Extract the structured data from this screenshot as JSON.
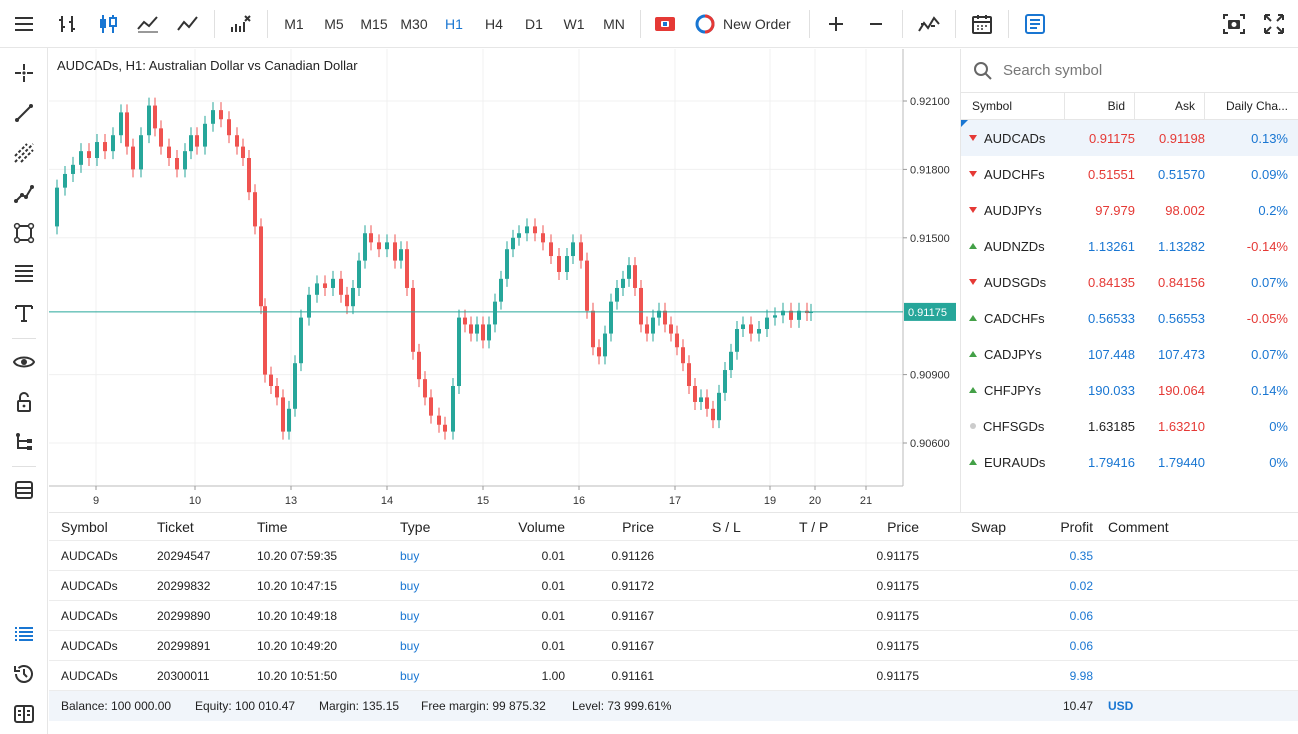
{
  "toolbar": {
    "timeframes": [
      "M1",
      "M5",
      "M15",
      "M30",
      "H1",
      "H4",
      "D1",
      "W1",
      "MN"
    ],
    "active_timeframe": "H1",
    "new_order_label": "New Order"
  },
  "chart": {
    "title": "AUDCADs, H1: Australian Dollar vs Canadian Dollar",
    "price_labels": [
      "0.92100",
      "0.91800",
      "0.91500",
      "0.90900",
      "0.90600"
    ],
    "current_price": "0.91175",
    "date_labels": [
      "9",
      "10",
      "13",
      "14",
      "15",
      "16",
      "17",
      "19",
      "20",
      "21"
    ],
    "colors": {
      "up": "#26a69a",
      "down": "#ef5350",
      "price_line": "#26a69a"
    }
  },
  "watchlist": {
    "search_placeholder": "Search symbol",
    "headers": {
      "symbol": "Symbol",
      "bid": "Bid",
      "ask": "Ask",
      "change": "Daily Cha..."
    },
    "rows": [
      {
        "symbol": "AUDCADs",
        "dir": "down",
        "bid": "0.91175",
        "ask": "0.91198",
        "change": "0.13%",
        "bid_color": "red",
        "ask_color": "red",
        "chg_color": "blue"
      },
      {
        "symbol": "AUDCHFs",
        "dir": "down",
        "bid": "0.51551",
        "ask": "0.51570",
        "change": "0.09%",
        "bid_color": "red",
        "ask_color": "blue",
        "chg_color": "blue"
      },
      {
        "symbol": "AUDJPYs",
        "dir": "down",
        "bid": "97.979",
        "ask": "98.002",
        "change": "0.2%",
        "bid_color": "red",
        "ask_color": "red",
        "chg_color": "blue"
      },
      {
        "symbol": "AUDNZDs",
        "dir": "up",
        "bid": "1.13261",
        "ask": "1.13282",
        "change": "-0.14%",
        "bid_color": "blue",
        "ask_color": "blue",
        "chg_color": "red"
      },
      {
        "symbol": "AUDSGDs",
        "dir": "down",
        "bid": "0.84135",
        "ask": "0.84156",
        "change": "0.07%",
        "bid_color": "red",
        "ask_color": "red",
        "chg_color": "blue"
      },
      {
        "symbol": "CADCHFs",
        "dir": "up",
        "bid": "0.56533",
        "ask": "0.56553",
        "change": "-0.05%",
        "bid_color": "blue",
        "ask_color": "blue",
        "chg_color": "red"
      },
      {
        "symbol": "CADJPYs",
        "dir": "up",
        "bid": "107.448",
        "ask": "107.473",
        "change": "0.07%",
        "bid_color": "blue",
        "ask_color": "blue",
        "chg_color": "blue"
      },
      {
        "symbol": "CHFJPYs",
        "dir": "up",
        "bid": "190.033",
        "ask": "190.064",
        "change": "0.14%",
        "bid_color": "blue",
        "ask_color": "red",
        "chg_color": "blue"
      },
      {
        "symbol": "CHFSGDs",
        "dir": "none",
        "bid": "1.63185",
        "ask": "1.63210",
        "change": "0%",
        "bid_color": "black",
        "ask_color": "red",
        "chg_color": "blue"
      },
      {
        "symbol": "EURAUDs",
        "dir": "up",
        "bid": "1.79416",
        "ask": "1.79440",
        "change": "0%",
        "bid_color": "blue",
        "ask_color": "blue",
        "chg_color": "blue"
      }
    ]
  },
  "trades": {
    "headers": {
      "symbol": "Symbol",
      "ticket": "Ticket",
      "time": "Time",
      "type": "Type",
      "volume": "Volume",
      "price": "Price",
      "sl": "S / L",
      "tp": "T / P",
      "cur_price": "Price",
      "swap": "Swap",
      "profit": "Profit",
      "comment": "Comment"
    },
    "rows": [
      {
        "symbol": "AUDCADs",
        "ticket": "20294547",
        "time": "10.20 07:59:35",
        "type": "buy",
        "volume": "0.01",
        "price": "0.91126",
        "cur_price": "0.91175",
        "profit": "0.35"
      },
      {
        "symbol": "AUDCADs",
        "ticket": "20299832",
        "time": "10.20 10:47:15",
        "type": "buy",
        "volume": "0.01",
        "price": "0.91172",
        "cur_price": "0.91175",
        "profit": "0.02"
      },
      {
        "symbol": "AUDCADs",
        "ticket": "20299890",
        "time": "10.20 10:49:18",
        "type": "buy",
        "volume": "0.01",
        "price": "0.91167",
        "cur_price": "0.91175",
        "profit": "0.06"
      },
      {
        "symbol": "AUDCADs",
        "ticket": "20299891",
        "time": "10.20 10:49:20",
        "type": "buy",
        "volume": "0.01",
        "price": "0.91167",
        "cur_price": "0.91175",
        "profit": "0.06"
      },
      {
        "symbol": "AUDCADs",
        "ticket": "20300011",
        "time": "10.20 10:51:50",
        "type": "buy",
        "volume": "1.00",
        "price": "0.91161",
        "cur_price": "0.91175",
        "profit": "9.98"
      }
    ],
    "summary": {
      "balance": "Balance: 100 000.00",
      "equity": "Equity: 100 010.47",
      "margin": "Margin: 135.15",
      "free_margin": "Free margin: 99 875.32",
      "level": "Level: 73 999.61%",
      "total_profit": "10.47",
      "currency": "USD"
    }
  }
}
